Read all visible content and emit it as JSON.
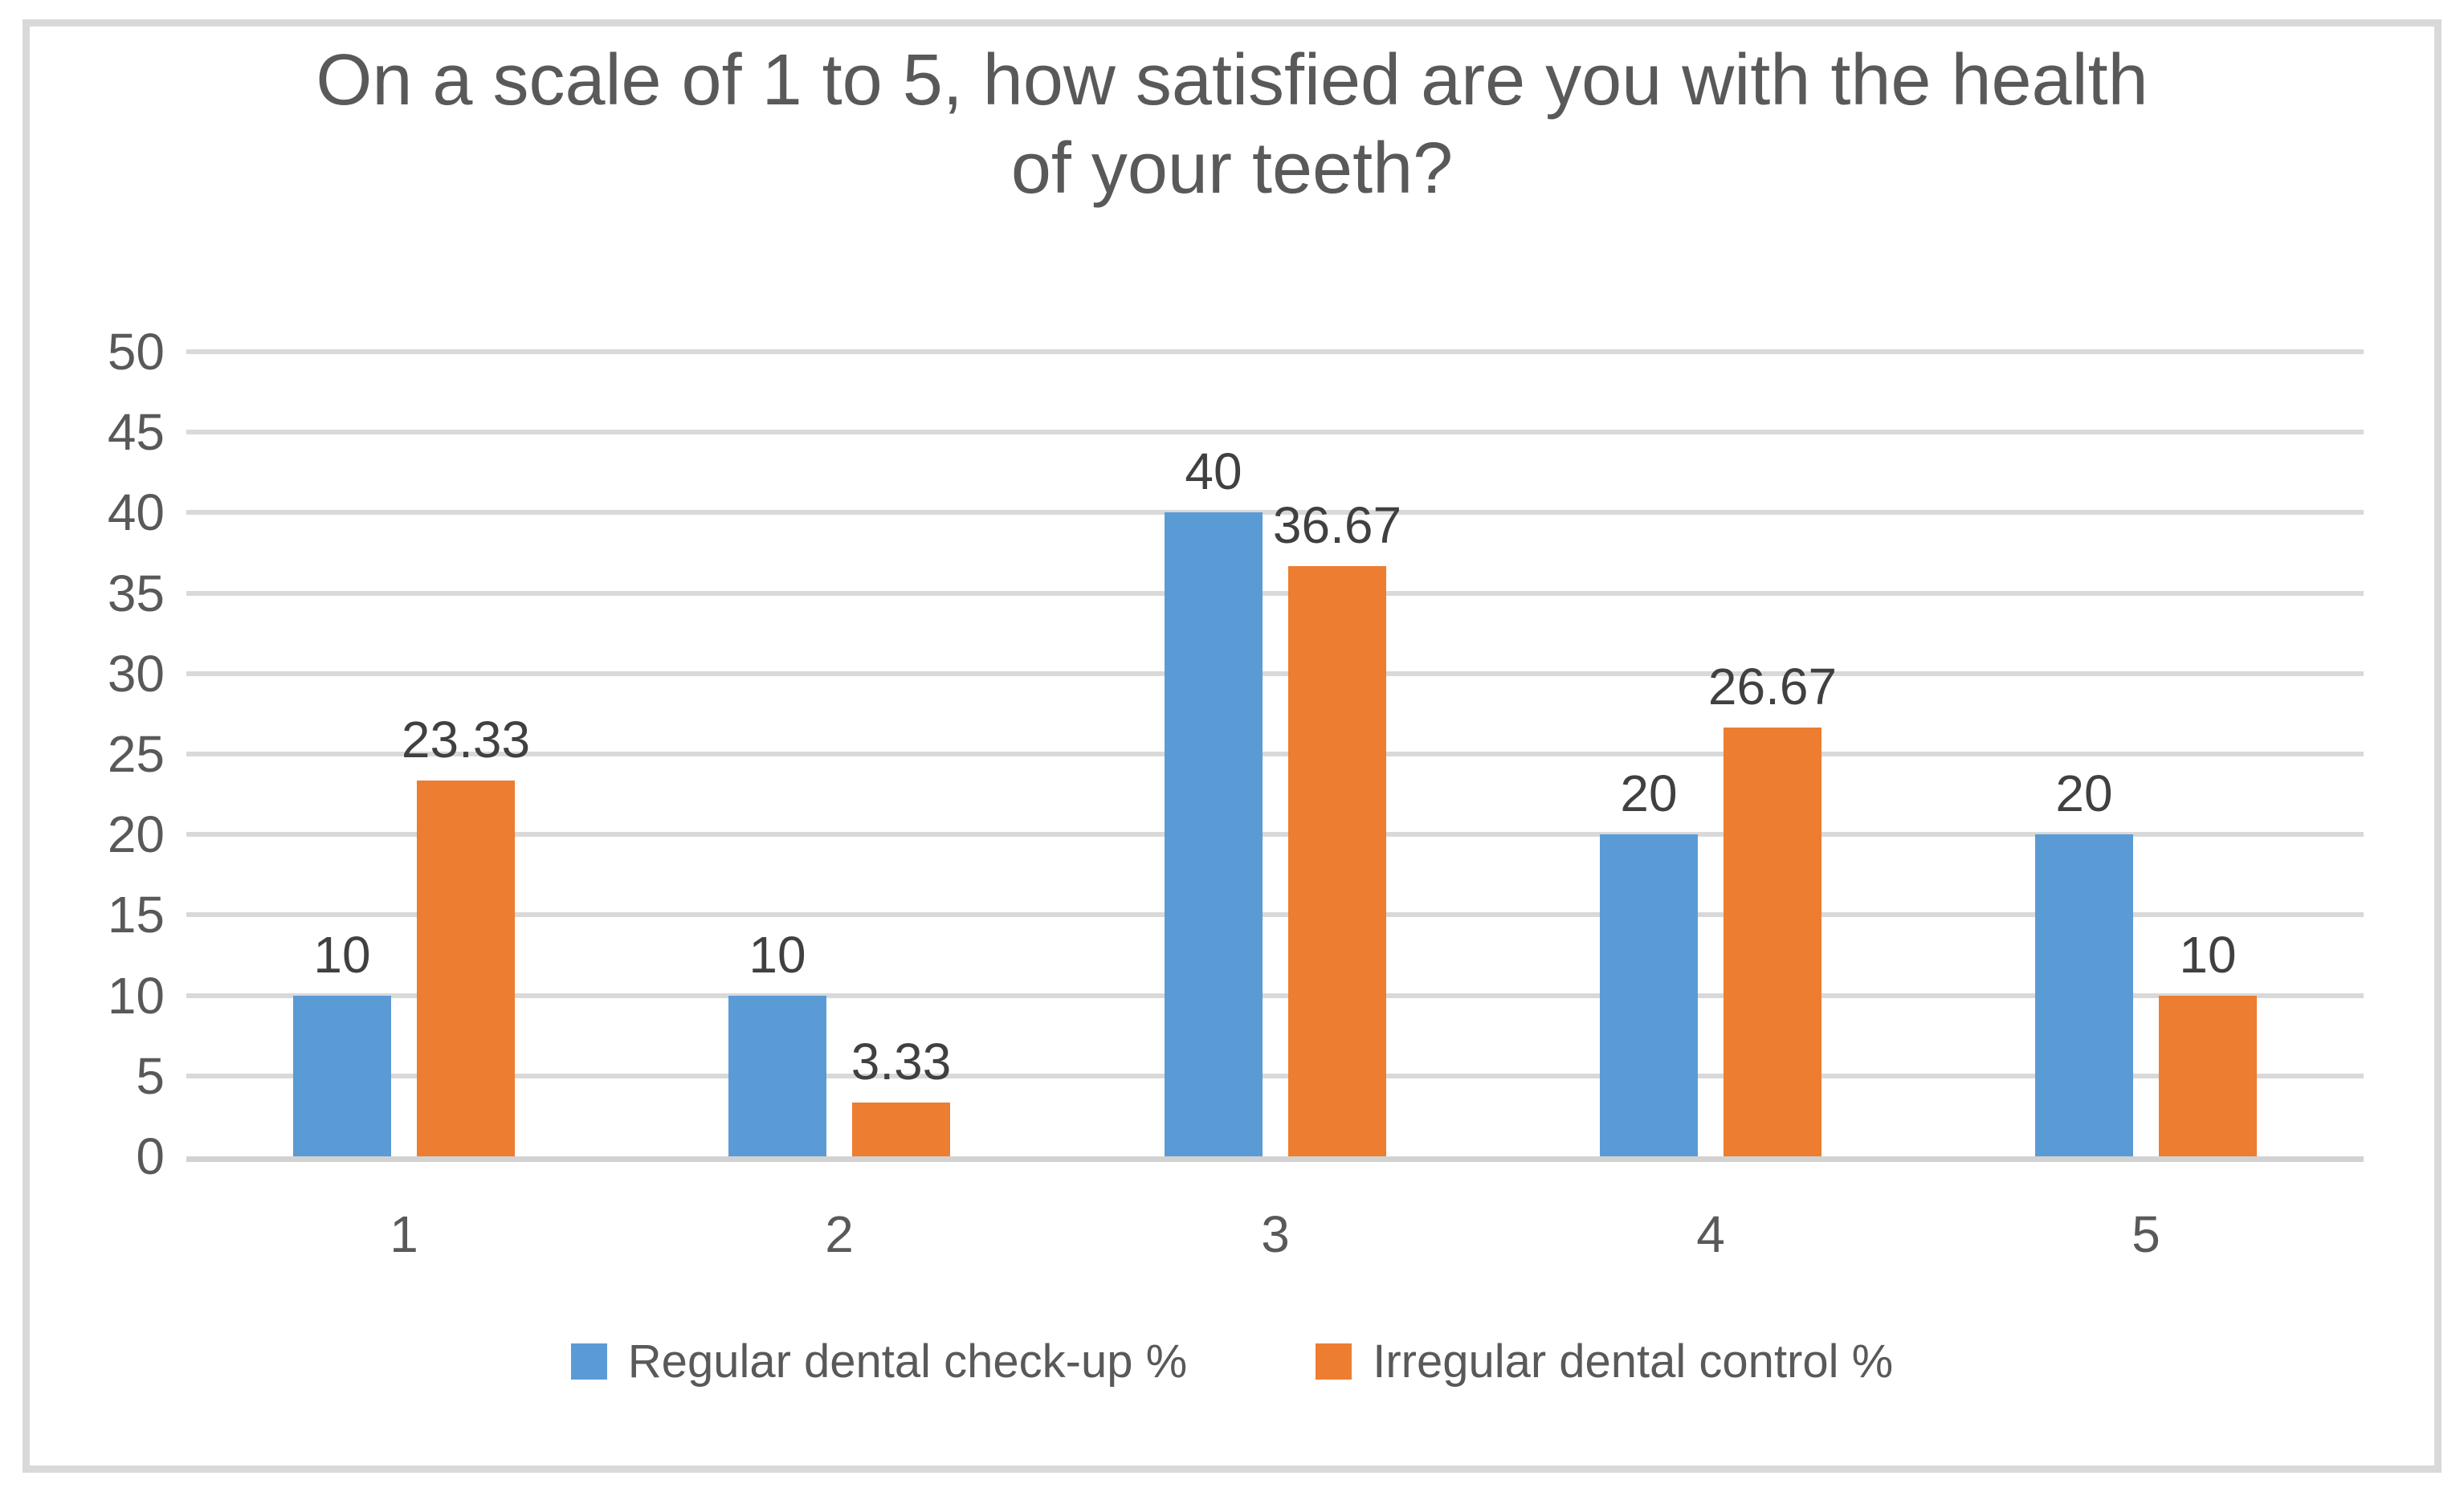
{
  "chart_data": {
    "type": "bar",
    "title": "On a scale of 1 to 5, how satisfied are you with the health of your teeth?",
    "title_lines": [
      "On a scale of 1 to 5, how satisfied are you with the health",
      "of your teeth?"
    ],
    "categories": [
      "1",
      "2",
      "3",
      "4",
      "5"
    ],
    "series": [
      {
        "name": "Regular dental check-up %",
        "color": "#5B9BD5",
        "values": [
          10,
          10,
          40,
          20,
          20
        ],
        "labels": [
          "10",
          "10",
          "40",
          "20",
          "20"
        ]
      },
      {
        "name": "Irregular dental control %",
        "color": "#ED7D31",
        "values": [
          23.33,
          3.33,
          36.67,
          26.67,
          10
        ],
        "labels": [
          "23.33",
          "3.33",
          "36.67",
          "26.67",
          "10"
        ]
      }
    ],
    "y_axis": {
      "min": 0,
      "max": 50,
      "step": 5,
      "ticks": [
        "0",
        "5",
        "10",
        "15",
        "20",
        "25",
        "30",
        "35",
        "40",
        "45",
        "50"
      ]
    },
    "xlabel": "",
    "ylabel": "",
    "grid": true,
    "legend_position": "bottom"
  },
  "colors": {
    "series_blue": "#5B9BD5",
    "series_orange": "#ED7D31",
    "title_text": "#595959",
    "axis_text": "#595959",
    "data_label_text": "#404040",
    "gridline": "#D9D9D9",
    "axis_line": "#D2D2D2",
    "frame_border": "#D9D9D9",
    "background": "#FFFFFF"
  }
}
